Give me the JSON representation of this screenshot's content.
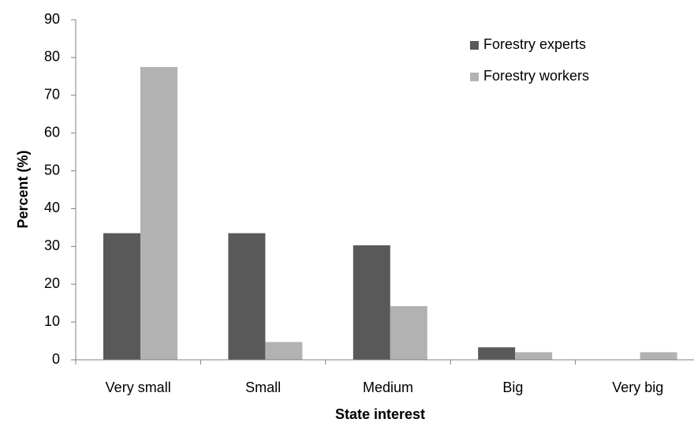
{
  "chart_data": {
    "type": "bar",
    "xlabel": "State interest",
    "ylabel": "Percent (%)",
    "ylim": [
      0,
      90
    ],
    "yticks": [
      0,
      10,
      20,
      30,
      40,
      50,
      60,
      70,
      80,
      90
    ],
    "categories": [
      "Very small",
      "Small",
      "Medium",
      "Big",
      "Very big"
    ],
    "series": [
      {
        "name": "Forestry experts",
        "color": "#595959",
        "values": [
          33.5,
          33.5,
          30.3,
          3.3,
          0
        ]
      },
      {
        "name": "Forestry workers",
        "color": "#b2b2b2",
        "values": [
          77.5,
          4.7,
          14.2,
          2.0,
          2.0
        ]
      }
    ],
    "grid": false,
    "legend": "top-right"
  }
}
